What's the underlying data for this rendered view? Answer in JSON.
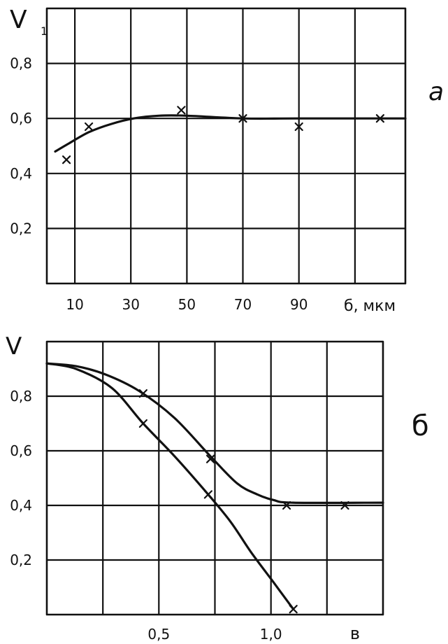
{
  "style": {
    "ink": "#111111",
    "paper": "#ffffff"
  },
  "chart_data": [
    {
      "type": "line",
      "panel_label": "а",
      "ylabel": "V",
      "ylabel_subscript": "1",
      "xlabel": "б, мкм",
      "xlim": [
        0,
        128
      ],
      "ylim": [
        0,
        1.0
      ],
      "xticks": [
        10,
        30,
        50,
        70,
        90
      ],
      "xtick_labels": [
        "10",
        "30",
        "50",
        "70",
        "90"
      ],
      "yticks": [
        0.8,
        0.6,
        0.4,
        0.2
      ],
      "ytick_labels": [
        "0,8",
        "0,6",
        "0,4",
        "0,2"
      ],
      "grid": true,
      "xgrid": [
        10,
        30,
        50,
        70,
        90,
        110
      ],
      "ygrid": [
        0.2,
        0.4,
        0.6,
        0.8
      ],
      "series": [
        {
          "marker": "x",
          "points": [
            [
              7,
              0.45
            ],
            [
              15,
              0.57
            ],
            [
              48,
              0.63
            ],
            [
              70,
              0.6
            ],
            [
              90,
              0.57
            ],
            [
              119,
              0.6
            ]
          ],
          "curve": [
            [
              3,
              0.48
            ],
            [
              8,
              0.51
            ],
            [
              15,
              0.55
            ],
            [
              23,
              0.58
            ],
            [
              31,
              0.6
            ],
            [
              40,
              0.61
            ],
            [
              50,
              0.61
            ],
            [
              70,
              0.6
            ],
            [
              90,
              0.6
            ],
            [
              128,
              0.6
            ]
          ]
        }
      ]
    },
    {
      "type": "line",
      "panel_label": "б",
      "ylabel": "V",
      "xlabel": "в",
      "xlim": [
        0,
        1.5
      ],
      "ylim": [
        0,
        1.0
      ],
      "xticks": [
        0.5,
        1.0
      ],
      "xtick_labels": [
        "0,5",
        "1,0"
      ],
      "yticks": [
        0.8,
        0.6,
        0.4,
        0.2
      ],
      "ytick_labels": [
        "0,8",
        "0,6",
        "0,4",
        "0,2"
      ],
      "grid": true,
      "xgrid": [
        0.25,
        0.5,
        0.75,
        1.0,
        1.25
      ],
      "ygrid": [
        0.2,
        0.4,
        0.6,
        0.8
      ],
      "series": [
        {
          "marker": "x",
          "points": [
            [
              0.43,
              0.81
            ],
            [
              0.73,
              0.57
            ],
            [
              1.07,
              0.4
            ],
            [
              1.33,
              0.4
            ]
          ],
          "curve": [
            [
              0,
              0.92
            ],
            [
              0.13,
              0.91
            ],
            [
              0.26,
              0.88
            ],
            [
              0.41,
              0.82
            ],
            [
              0.57,
              0.72
            ],
            [
              0.73,
              0.58
            ],
            [
              0.85,
              0.48
            ],
            [
              0.94,
              0.44
            ],
            [
              1.01,
              0.42
            ],
            [
              1.1,
              0.41
            ],
            [
              1.5,
              0.41
            ]
          ]
        },
        {
          "marker": "x",
          "points": [
            [
              0.43,
              0.7
            ],
            [
              0.72,
              0.44
            ],
            [
              1.1,
              0.02
            ]
          ],
          "curve": [
            [
              0,
              0.92
            ],
            [
              0.13,
              0.9
            ],
            [
              0.29,
              0.83
            ],
            [
              0.43,
              0.7
            ],
            [
              0.57,
              0.58
            ],
            [
              0.72,
              0.44
            ],
            [
              0.82,
              0.34
            ],
            [
              0.91,
              0.23
            ],
            [
              1.01,
              0.12
            ],
            [
              1.1,
              0.02
            ]
          ]
        }
      ]
    }
  ]
}
